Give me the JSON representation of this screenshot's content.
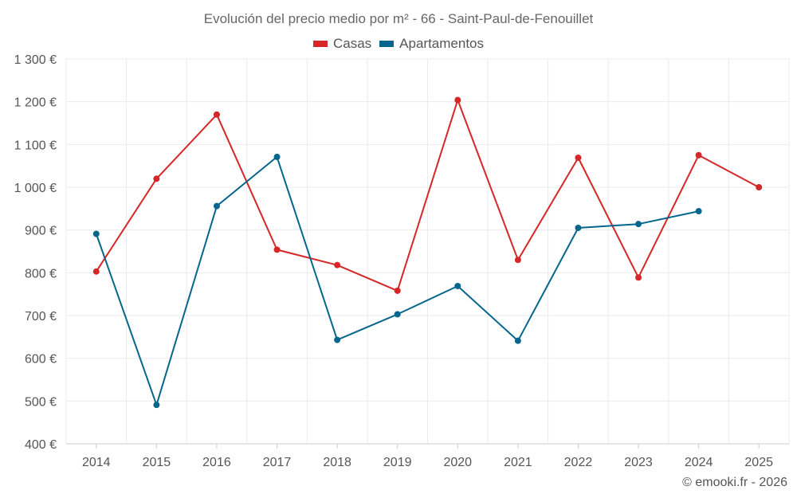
{
  "chart_data": {
    "type": "line",
    "title": "Evolución del precio medio por m² - 66 - Saint-Paul-de-Fenouillet",
    "xlabel": "",
    "ylabel": "",
    "categories": [
      "2014",
      "2015",
      "2016",
      "2017",
      "2018",
      "2019",
      "2020",
      "2021",
      "2022",
      "2023",
      "2024",
      "2025"
    ],
    "ylim": [
      400,
      1300
    ],
    "yticks": [
      400,
      500,
      600,
      700,
      800,
      900,
      1000,
      1100,
      1200,
      1300
    ],
    "ytick_labels": [
      "400 €",
      "500 €",
      "600 €",
      "700 €",
      "800 €",
      "900 €",
      "1 000 €",
      "1 100 €",
      "1 200 €",
      "1 300 €"
    ],
    "grid": true,
    "legend_position": "top-center",
    "series": [
      {
        "name": "Casas",
        "color": "#d62728",
        "values": [
          803,
          1020,
          1170,
          854,
          818,
          758,
          1204,
          830,
          1069,
          789,
          1075,
          1000
        ]
      },
      {
        "name": "Apartamentos",
        "color": "#05668d",
        "values": [
          891,
          491,
          956,
          1071,
          643,
          703,
          769,
          641,
          905,
          914,
          944,
          null
        ]
      }
    ]
  },
  "credit": "© emooki.fr - 2026"
}
